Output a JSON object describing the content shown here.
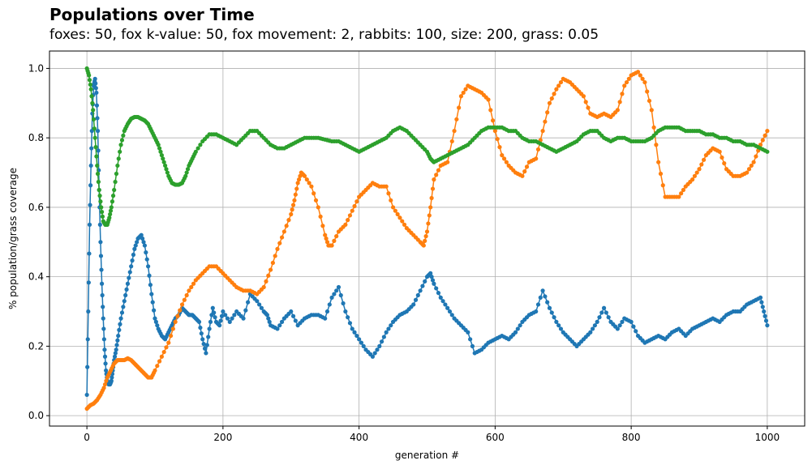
{
  "chart_data": {
    "type": "line",
    "title": "Populations over Time",
    "subtitle": "foxes: 50, fox k-value: 50, fox movement: 2, rabbits: 100, size: 200, grass: 0.05",
    "xlabel": "generation #",
    "ylabel": "% population/grass coverage",
    "xlim": [
      -55,
      1055
    ],
    "ylim": [
      -0.03,
      1.05
    ],
    "xticks": [
      0,
      200,
      400,
      600,
      800,
      1000
    ],
    "yticks": [
      0.0,
      0.2,
      0.4,
      0.6,
      0.8,
      1.0
    ],
    "xtick_labels": [
      "0",
      "200",
      "400",
      "600",
      "800",
      "1000"
    ],
    "ytick_labels": [
      "0.0",
      "0.2",
      "0.4",
      "0.6",
      "0.8",
      "1.0"
    ],
    "grid": true,
    "series": [
      {
        "color": "#1f77b4",
        "x": [
          0,
          2,
          4,
          6,
          8,
          10,
          12,
          14,
          16,
          18,
          20,
          22,
          24,
          26,
          28,
          30,
          32,
          34,
          36,
          38,
          40,
          43,
          46,
          50,
          55,
          60,
          65,
          70,
          75,
          80,
          85,
          90,
          95,
          100,
          105,
          110,
          115,
          120,
          125,
          130,
          135,
          140,
          145,
          150,
          155,
          160,
          165,
          170,
          175,
          180,
          185,
          190,
          195,
          200,
          210,
          220,
          230,
          240,
          250,
          260,
          265,
          270,
          280,
          290,
          300,
          310,
          320,
          330,
          340,
          350,
          360,
          370,
          380,
          390,
          400,
          410,
          420,
          430,
          440,
          450,
          460,
          470,
          480,
          490,
          500,
          505,
          510,
          520,
          530,
          540,
          550,
          560,
          570,
          580,
          590,
          600,
          610,
          620,
          630,
          640,
          650,
          660,
          670,
          680,
          690,
          700,
          710,
          720,
          730,
          740,
          750,
          760,
          770,
          780,
          790,
          800,
          810,
          820,
          830,
          840,
          850,
          860,
          870,
          880,
          890,
          900,
          910,
          920,
          930,
          940,
          950,
          960,
          970,
          980,
          990,
          995,
          1000
        ],
        "y": [
          0.06,
          0.3,
          0.55,
          0.72,
          0.87,
          0.95,
          0.97,
          0.93,
          0.82,
          0.65,
          0.5,
          0.38,
          0.28,
          0.19,
          0.13,
          0.1,
          0.09,
          0.09,
          0.1,
          0.13,
          0.16,
          0.19,
          0.23,
          0.28,
          0.33,
          0.38,
          0.43,
          0.48,
          0.51,
          0.52,
          0.49,
          0.43,
          0.35,
          0.28,
          0.25,
          0.23,
          0.22,
          0.24,
          0.26,
          0.28,
          0.29,
          0.31,
          0.3,
          0.29,
          0.29,
          0.28,
          0.27,
          0.22,
          0.18,
          0.25,
          0.31,
          0.27,
          0.26,
          0.3,
          0.27,
          0.3,
          0.28,
          0.35,
          0.33,
          0.3,
          0.29,
          0.26,
          0.25,
          0.28,
          0.3,
          0.26,
          0.28,
          0.29,
          0.29,
          0.28,
          0.34,
          0.37,
          0.3,
          0.25,
          0.22,
          0.19,
          0.17,
          0.2,
          0.24,
          0.27,
          0.29,
          0.3,
          0.32,
          0.36,
          0.4,
          0.41,
          0.38,
          0.34,
          0.31,
          0.28,
          0.26,
          0.24,
          0.18,
          0.19,
          0.21,
          0.22,
          0.23,
          0.22,
          0.24,
          0.27,
          0.29,
          0.3,
          0.36,
          0.31,
          0.27,
          0.24,
          0.22,
          0.2,
          0.22,
          0.24,
          0.27,
          0.31,
          0.27,
          0.25,
          0.28,
          0.27,
          0.23,
          0.21,
          0.22,
          0.23,
          0.22,
          0.24,
          0.25,
          0.23,
          0.25,
          0.26,
          0.27,
          0.28,
          0.27,
          0.29,
          0.3,
          0.3,
          0.32,
          0.33,
          0.34,
          0.3,
          0.26
        ]
      },
      {
        "color": "#ff7f0e",
        "x": [
          0,
          5,
          10,
          15,
          20,
          25,
          30,
          35,
          40,
          45,
          50,
          55,
          60,
          65,
          70,
          75,
          80,
          85,
          90,
          95,
          100,
          110,
          120,
          130,
          140,
          150,
          160,
          170,
          180,
          190,
          200,
          210,
          220,
          230,
          240,
          250,
          260,
          270,
          280,
          290,
          300,
          305,
          310,
          315,
          320,
          330,
          340,
          350,
          355,
          360,
          370,
          380,
          390,
          400,
          410,
          420,
          430,
          440,
          450,
          460,
          470,
          480,
          490,
          495,
          500,
          505,
          510,
          520,
          530,
          540,
          550,
          560,
          570,
          580,
          590,
          600,
          610,
          620,
          630,
          640,
          650,
          660,
          670,
          680,
          690,
          700,
          710,
          720,
          730,
          740,
          750,
          760,
          770,
          780,
          790,
          800,
          810,
          820,
          830,
          840,
          850,
          860,
          870,
          880,
          890,
          900,
          910,
          920,
          930,
          940,
          950,
          960,
          970,
          980,
          990,
          1000
        ],
        "y": [
          0.02,
          0.03,
          0.035,
          0.045,
          0.06,
          0.08,
          0.11,
          0.13,
          0.15,
          0.16,
          0.16,
          0.16,
          0.165,
          0.16,
          0.15,
          0.14,
          0.13,
          0.12,
          0.11,
          0.11,
          0.13,
          0.17,
          0.21,
          0.27,
          0.32,
          0.36,
          0.39,
          0.41,
          0.43,
          0.43,
          0.41,
          0.39,
          0.37,
          0.36,
          0.36,
          0.35,
          0.37,
          0.42,
          0.48,
          0.53,
          0.58,
          0.62,
          0.67,
          0.7,
          0.69,
          0.66,
          0.6,
          0.52,
          0.49,
          0.49,
          0.53,
          0.55,
          0.59,
          0.63,
          0.65,
          0.67,
          0.66,
          0.66,
          0.6,
          0.57,
          0.54,
          0.52,
          0.5,
          0.49,
          0.53,
          0.6,
          0.68,
          0.72,
          0.73,
          0.82,
          0.92,
          0.95,
          0.94,
          0.93,
          0.91,
          0.82,
          0.75,
          0.72,
          0.7,
          0.69,
          0.73,
          0.74,
          0.82,
          0.9,
          0.94,
          0.97,
          0.96,
          0.94,
          0.92,
          0.87,
          0.86,
          0.87,
          0.86,
          0.88,
          0.95,
          0.98,
          0.99,
          0.96,
          0.88,
          0.73,
          0.63,
          0.63,
          0.63,
          0.66,
          0.68,
          0.71,
          0.75,
          0.77,
          0.76,
          0.71,
          0.69,
          0.69,
          0.7,
          0.73,
          0.78,
          0.82
        ]
      },
      {
        "color": "#2ca02c",
        "x": [
          0,
          3,
          6,
          9,
          12,
          15,
          18,
          21,
          24,
          27,
          30,
          33,
          36,
          40,
          45,
          50,
          55,
          60,
          65,
          70,
          75,
          80,
          85,
          90,
          95,
          100,
          105,
          110,
          115,
          120,
          125,
          130,
          135,
          140,
          145,
          150,
          155,
          160,
          170,
          180,
          190,
          200,
          210,
          220,
          230,
          240,
          250,
          260,
          270,
          280,
          290,
          300,
          310,
          320,
          330,
          340,
          350,
          360,
          370,
          380,
          390,
          400,
          410,
          420,
          430,
          440,
          450,
          460,
          470,
          480,
          490,
          500,
          505,
          510,
          520,
          530,
          540,
          550,
          560,
          570,
          580,
          590,
          600,
          610,
          620,
          630,
          640,
          650,
          660,
          670,
          680,
          690,
          700,
          710,
          720,
          730,
          740,
          750,
          760,
          770,
          780,
          790,
          800,
          810,
          820,
          830,
          840,
          850,
          860,
          870,
          880,
          890,
          900,
          910,
          920,
          930,
          940,
          950,
          960,
          970,
          980,
          990,
          1000
        ],
        "y": [
          1.0,
          0.98,
          0.94,
          0.88,
          0.8,
          0.72,
          0.65,
          0.6,
          0.56,
          0.55,
          0.55,
          0.57,
          0.6,
          0.65,
          0.72,
          0.78,
          0.82,
          0.84,
          0.855,
          0.86,
          0.86,
          0.855,
          0.85,
          0.84,
          0.82,
          0.8,
          0.78,
          0.75,
          0.72,
          0.69,
          0.67,
          0.665,
          0.665,
          0.67,
          0.69,
          0.72,
          0.74,
          0.76,
          0.79,
          0.81,
          0.81,
          0.8,
          0.79,
          0.78,
          0.8,
          0.82,
          0.82,
          0.8,
          0.78,
          0.77,
          0.77,
          0.78,
          0.79,
          0.8,
          0.8,
          0.8,
          0.795,
          0.79,
          0.79,
          0.78,
          0.77,
          0.76,
          0.77,
          0.78,
          0.79,
          0.8,
          0.82,
          0.83,
          0.82,
          0.8,
          0.78,
          0.76,
          0.74,
          0.73,
          0.74,
          0.75,
          0.76,
          0.77,
          0.78,
          0.8,
          0.82,
          0.83,
          0.83,
          0.83,
          0.82,
          0.82,
          0.8,
          0.79,
          0.79,
          0.78,
          0.77,
          0.76,
          0.77,
          0.78,
          0.79,
          0.81,
          0.82,
          0.82,
          0.8,
          0.79,
          0.8,
          0.8,
          0.79,
          0.79,
          0.79,
          0.8,
          0.82,
          0.83,
          0.83,
          0.83,
          0.82,
          0.82,
          0.82,
          0.81,
          0.81,
          0.8,
          0.8,
          0.79,
          0.79,
          0.78,
          0.78,
          0.77,
          0.76
        ]
      }
    ]
  }
}
